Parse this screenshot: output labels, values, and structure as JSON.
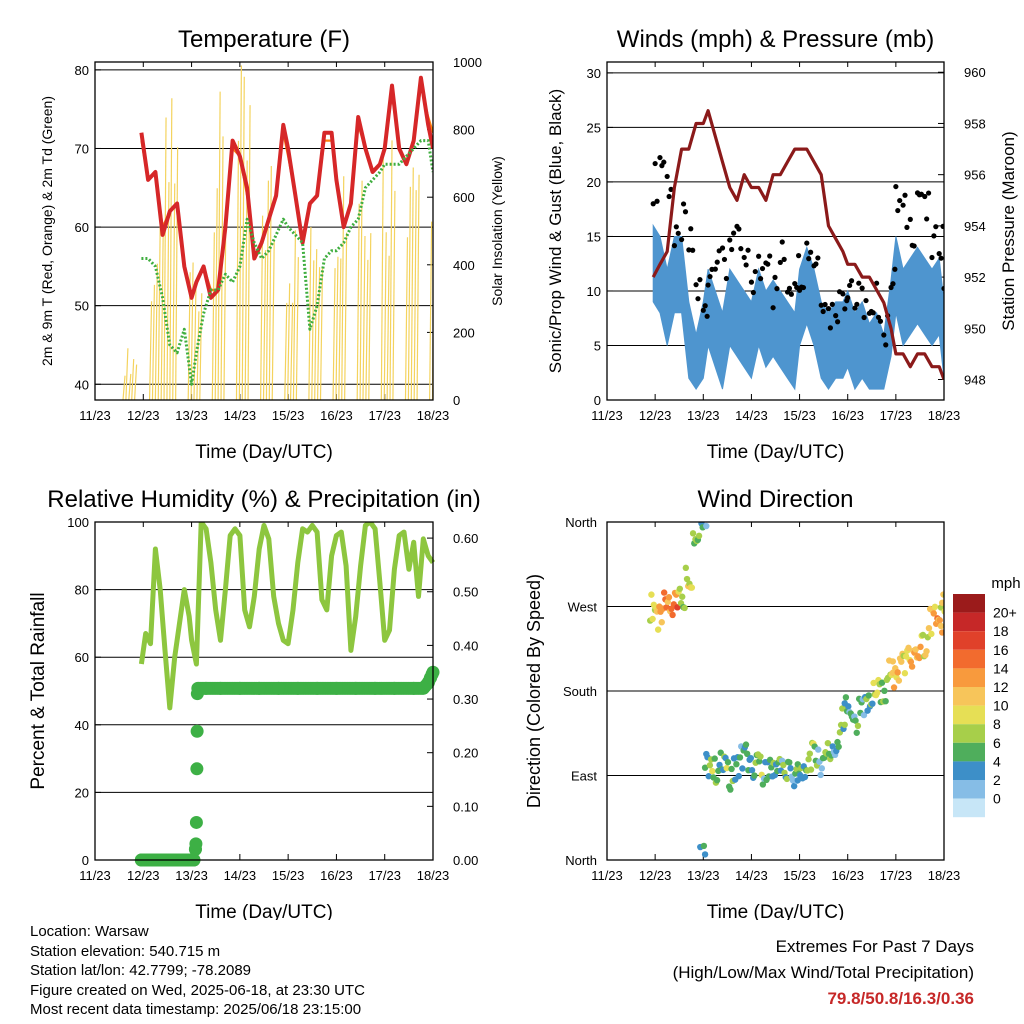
{
  "colors": {
    "temp_2m": "#d62728",
    "temp_9m": "#ff7f0e",
    "dewpoint": "#3fae3f",
    "insolation": "#f4d35e",
    "wind_sonic": "#4e95cf",
    "gust": "#000000",
    "pressure": "#8b1a1a",
    "rh": "#8dc63f",
    "precip": "#3db045",
    "highlight": "#c62828"
  },
  "time_ticks": [
    "11/23",
    "12/23",
    "13/23",
    "14/23",
    "15/23",
    "16/23",
    "17/23",
    "18/23"
  ],
  "chart_data": [
    {
      "id": "temperature",
      "type": "line",
      "title": "Temperature (F)",
      "xlabel": "Time (Day/UTC)",
      "ylabel": "2m & 9m T (Red, Orange) & 2m Td (Green)",
      "y2label": "Solar Insolation (Yellow)",
      "x": [
        11.96,
        12.1,
        12.25,
        12.4,
        12.55,
        12.7,
        12.85,
        13.0,
        13.1,
        13.25,
        13.4,
        13.55,
        13.7,
        13.85,
        14.0,
        14.15,
        14.3,
        14.45,
        14.6,
        14.75,
        14.9,
        15.0,
        15.15,
        15.3,
        15.45,
        15.6,
        15.75,
        15.9,
        16.0,
        16.15,
        16.3,
        16.45,
        16.6,
        16.75,
        16.9,
        17.0,
        17.15,
        17.3,
        17.45,
        17.6,
        17.75,
        17.9,
        18.0
      ],
      "ylim": [
        38,
        81
      ],
      "y2lim": [
        0,
        1000
      ],
      "y_ticks": [
        40,
        50,
        60,
        70,
        80
      ],
      "y2_ticks": [
        0,
        200,
        400,
        600,
        800,
        1000
      ],
      "series": [
        {
          "name": "2m T",
          "values": [
            72,
            66,
            67,
            59,
            62,
            63,
            55,
            51,
            53,
            55,
            51,
            52,
            60,
            71,
            69,
            65,
            56,
            58,
            61,
            64,
            73,
            70,
            64,
            58,
            63,
            64,
            72,
            72,
            66,
            60,
            63,
            74,
            70,
            67,
            68,
            70,
            78,
            70,
            68,
            71,
            79,
            73,
            70
          ]
        },
        {
          "name": "9m T",
          "values": [
            71,
            66,
            67,
            60,
            62,
            63,
            55,
            51,
            53,
            55,
            52,
            52,
            60,
            70,
            69,
            64,
            56,
            58,
            61,
            64,
            72,
            69,
            64,
            58,
            63,
            64,
            71,
            71,
            66,
            60,
            63,
            73,
            70,
            67,
            68,
            70,
            77,
            70,
            68,
            71,
            78,
            74,
            72
          ]
        },
        {
          "name": "2m Td",
          "values": [
            56,
            56,
            55,
            51,
            45,
            44,
            47,
            40,
            44,
            49,
            52,
            52,
            54,
            53,
            55,
            61,
            58,
            56,
            57,
            59,
            61,
            60,
            59,
            58,
            47,
            50,
            56,
            57,
            57,
            58,
            60,
            61,
            65,
            66,
            67,
            68,
            68,
            68,
            69,
            70,
            71,
            71,
            67
          ]
        }
      ],
      "insolation_peaks": [
        {
          "day": 11.7,
          "value": 160
        },
        {
          "day": 12.25,
          "value": 540
        },
        {
          "day": 12.55,
          "value": 930
        },
        {
          "day": 13.05,
          "value": 500
        },
        {
          "day": 13.55,
          "value": 920
        },
        {
          "day": 14.05,
          "value": 1000
        },
        {
          "day": 14.55,
          "value": 780
        },
        {
          "day": 15.05,
          "value": 560
        },
        {
          "day": 15.55,
          "value": 720
        },
        {
          "day": 16.05,
          "value": 850
        },
        {
          "day": 16.55,
          "value": 890
        },
        {
          "day": 17.05,
          "value": 900
        },
        {
          "day": 17.55,
          "value": 960
        },
        {
          "day": 18.05,
          "value": 1000
        }
      ]
    },
    {
      "id": "winds",
      "type": "line",
      "title": "Winds (mph) & Pressure (mb)",
      "xlabel": "Time (Day/UTC)",
      "ylabel": "Sonic/Prop Wind & Gust (Blue, Black)",
      "y2label": "Station Pressure (Maroon)",
      "x": [
        11.96,
        12.1,
        12.25,
        12.4,
        12.55,
        12.7,
        12.85,
        13.0,
        13.1,
        13.25,
        13.4,
        13.55,
        13.7,
        13.85,
        14.0,
        14.15,
        14.3,
        14.45,
        14.6,
        14.75,
        14.9,
        15.0,
        15.15,
        15.3,
        15.45,
        15.6,
        15.75,
        15.9,
        16.0,
        16.15,
        16.3,
        16.45,
        16.6,
        16.75,
        16.9,
        17.0,
        17.15,
        17.3,
        17.45,
        17.6,
        17.75,
        17.9,
        18.0
      ],
      "ylim": [
        0,
        31
      ],
      "y2lim": [
        947.2,
        960.4
      ],
      "y_ticks": [
        0,
        5,
        10,
        15,
        20,
        25,
        30
      ],
      "y2_ticks": [
        948,
        950,
        952,
        954,
        956,
        958,
        960
      ],
      "series": [
        {
          "name": "Sonic/Prop Wind",
          "values": [
            13,
            12,
            9,
            12,
            12,
            6,
            3,
            6,
            9,
            7,
            5,
            9,
            8,
            7,
            6,
            9,
            7,
            8,
            7,
            6,
            5,
            9,
            11,
            9,
            6,
            5,
            6,
            6,
            7,
            5,
            6,
            4,
            5,
            3,
            8,
            12,
            9,
            10,
            11,
            10,
            9,
            10,
            6
          ]
        },
        {
          "name": "Gust",
          "values": [
            20,
            22,
            20,
            14,
            16,
            14,
            10,
            8,
            12,
            14,
            12,
            15,
            14,
            12,
            11,
            12,
            14,
            10,
            13,
            11,
            12,
            12,
            14,
            13,
            10,
            8,
            9,
            10,
            11,
            9,
            9,
            7,
            9,
            6,
            12,
            18,
            17,
            16,
            19,
            17,
            14,
            15,
            11
          ]
        },
        {
          "name": "Station Pressure",
          "values": [
            952.0,
            952.5,
            953.0,
            955.5,
            957.0,
            957.0,
            958.0,
            958.0,
            958.5,
            957.5,
            956.5,
            955.5,
            955.0,
            956.0,
            955.5,
            955.5,
            955.0,
            956.0,
            956.0,
            956.5,
            957.0,
            957.0,
            957.0,
            956.5,
            956.0,
            954.0,
            953.5,
            953.0,
            952.5,
            952.5,
            952.0,
            952.0,
            951.5,
            951.0,
            950.0,
            949.0,
            949.0,
            948.5,
            949.0,
            949.0,
            948.5,
            948.5,
            948.0
          ]
        }
      ]
    },
    {
      "id": "humidity",
      "type": "line",
      "title": "Relative Humidity (%) & Precipitation (in)",
      "xlabel": "Time (Day/UTC)",
      "ylabel": "Percent & Total Rainfall",
      "ylim": [
        0,
        100
      ],
      "y2lim": [
        0,
        0.63
      ],
      "y_ticks": [
        0,
        20,
        40,
        60,
        80,
        100
      ],
      "y2_ticks": [
        0.0,
        0.1,
        0.2,
        0.3,
        0.4,
        0.5,
        0.6
      ],
      "y2_tick_labels": [
        "0.00",
        "0.10",
        "0.20",
        "0.30",
        "0.40",
        "0.50",
        "0.60"
      ],
      "rh_x": [
        11.96,
        12.05,
        12.15,
        12.25,
        12.35,
        12.45,
        12.55,
        12.65,
        12.75,
        12.85,
        12.95,
        13.0,
        13.1,
        13.2,
        13.3,
        13.4,
        13.5,
        13.6,
        13.7,
        13.8,
        13.9,
        14.0,
        14.1,
        14.2,
        14.3,
        14.4,
        14.5,
        14.6,
        14.7,
        14.8,
        14.9,
        15.0,
        15.1,
        15.2,
        15.3,
        15.4,
        15.5,
        15.6,
        15.7,
        15.8,
        15.9,
        16.0,
        16.1,
        16.2,
        16.3,
        16.4,
        16.5,
        16.6,
        16.7,
        16.8,
        16.9,
        17.0,
        17.1,
        17.2,
        17.3,
        17.4,
        17.5,
        17.6,
        17.7,
        17.8,
        17.9,
        18.0
      ],
      "rh_values": [
        58,
        67,
        64,
        92,
        80,
        62,
        45,
        60,
        70,
        80,
        72,
        65,
        58,
        100,
        98,
        88,
        74,
        65,
        80,
        96,
        98,
        96,
        74,
        69,
        78,
        92,
        99,
        95,
        78,
        70,
        65,
        64,
        74,
        88,
        98,
        97,
        99,
        97,
        77,
        74,
        90,
        96,
        97,
        87,
        62,
        72,
        87,
        99,
        100,
        98,
        82,
        65,
        68,
        86,
        96,
        97,
        86,
        94,
        78,
        95,
        90,
        88
      ],
      "precip_x": [
        11.96,
        12.2,
        12.4,
        12.6,
        12.8,
        13.05,
        13.08,
        13.09,
        13.1,
        13.11,
        13.12,
        13.13,
        13.3,
        13.6,
        14.0,
        14.4,
        14.8,
        15.2,
        15.6,
        16.0,
        16.4,
        16.8,
        17.2,
        17.6,
        17.8,
        17.9,
        17.95,
        18.0
      ],
      "precip_values": [
        0.0,
        0.0,
        0.0,
        0.0,
        0.0,
        0.0,
        0.02,
        0.03,
        0.07,
        0.17,
        0.31,
        0.32,
        0.32,
        0.32,
        0.32,
        0.32,
        0.32,
        0.32,
        0.32,
        0.32,
        0.32,
        0.32,
        0.32,
        0.32,
        0.32,
        0.33,
        0.34,
        0.35
      ]
    },
    {
      "id": "wind_direction",
      "type": "scatter",
      "title": "Wind Direction",
      "xlabel": "Time (Day/UTC)",
      "ylabel": "Direction (Colored By Speed)",
      "y_ticks": [
        "North",
        "East",
        "South",
        "West",
        "North"
      ],
      "legend_title": "mph",
      "legend_labels": [
        "20+",
        "18",
        "16",
        "14",
        "12",
        "10",
        "8",
        "6",
        "4",
        "2",
        "0"
      ],
      "legend_colors": [
        "#9b1b1b",
        "#c62828",
        "#e0412a",
        "#f26b2e",
        "#f89a3d",
        "#f7c55a",
        "#e6df55",
        "#a7cf4a",
        "#4fae5c",
        "#3d8fc8",
        "#86bde6",
        "#c7e6f7"
      ],
      "x": [
        11.96,
        12.1,
        12.25,
        12.4,
        12.55,
        12.7,
        12.85,
        13.0,
        13.1,
        13.25,
        13.4,
        13.55,
        13.7,
        13.85,
        14.0,
        14.15,
        14.3,
        14.45,
        14.6,
        14.75,
        14.9,
        15.0,
        15.15,
        15.3,
        15.45,
        15.6,
        15.75,
        15.9,
        16.0,
        16.15,
        16.3,
        16.45,
        16.6,
        16.75,
        16.9,
        17.0,
        17.15,
        17.3,
        17.45,
        17.6,
        17.75,
        17.9,
        18.0
      ],
      "direction_deg": [
        270,
        255,
        280,
        270,
        280,
        300,
        345,
        8,
        100,
        95,
        110,
        90,
        100,
        110,
        95,
        105,
        90,
        100,
        105,
        95,
        85,
        95,
        100,
        110,
        105,
        115,
        120,
        150,
        160,
        140,
        160,
        165,
        180,
        180,
        200,
        190,
        210,
        215,
        220,
        230,
        255,
        250,
        270
      ],
      "speed_mph": [
        10,
        12,
        14,
        16,
        8,
        10,
        6,
        4,
        6,
        8,
        6,
        8,
        6,
        5,
        6,
        8,
        4,
        6,
        5,
        6,
        4,
        5,
        6,
        8,
        4,
        6,
        5,
        6,
        4,
        5,
        4,
        6,
        8,
        6,
        10,
        12,
        10,
        12,
        14,
        10,
        12,
        14,
        10
      ]
    }
  ],
  "station": {
    "location": "Location: Warsaw",
    "elevation": "Station elevation: 540.715 m",
    "latlon": "Station lat/lon: 42.7799; -78.2089",
    "created": "Figure created on Wed, 2025-06-18, at 23:30 UTC",
    "latest": "Most recent data timestamp: 2025/06/18 23:15:00"
  },
  "extremes": {
    "title": "Extremes For Past 7 Days",
    "subtitle": "(High/Low/Max Wind/Total Precipitation)",
    "values": "79.8/50.8/16.3/0.36"
  }
}
